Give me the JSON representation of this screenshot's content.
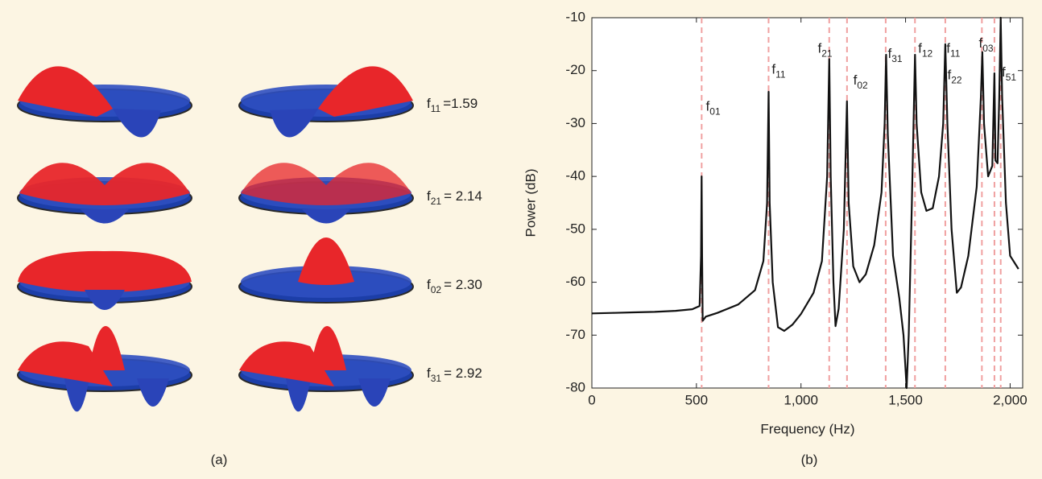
{
  "panel_a": {
    "caption": "(a)",
    "modes": [
      {
        "letter": "f",
        "sub": "11",
        "value": "=1.59"
      },
      {
        "letter": "f",
        "sub": "21",
        "value": "= 2.14"
      },
      {
        "letter": "f",
        "sub": "02",
        "value": "= 2.30"
      },
      {
        "letter": "f",
        "sub": "31",
        "value": "= 2.92"
      }
    ]
  },
  "chart_data": {
    "type": "line",
    "caption": "(b)",
    "xlabel": "Frequency (Hz)",
    "ylabel": "Power (dB)",
    "xlim": [
      0,
      2060
    ],
    "ylim": [
      -80,
      -10
    ],
    "xticks": [
      0,
      500,
      {
        "value": 1000,
        "label": "1,000"
      },
      {
        "value": 1500,
        "label": "1,500"
      },
      {
        "value": 2000,
        "label": "2,000"
      }
    ],
    "yticks": [
      -80,
      -70,
      -60,
      -50,
      -40,
      -30,
      -20,
      -10
    ],
    "x": [
      0,
      100,
      200,
      300,
      400,
      480,
      515,
      522,
      525,
      527,
      530,
      545,
      600,
      700,
      780,
      820,
      838,
      845,
      850,
      865,
      890,
      920,
      960,
      1000,
      1060,
      1100,
      1125,
      1135,
      1142,
      1155,
      1165,
      1180,
      1205,
      1220,
      1228,
      1250,
      1280,
      1310,
      1350,
      1385,
      1400,
      1407,
      1415,
      1440,
      1470,
      1490,
      1505,
      1515,
      1530,
      1545,
      1553,
      1575,
      1600,
      1630,
      1660,
      1680,
      1690,
      1700,
      1720,
      1745,
      1765,
      1800,
      1840,
      1860,
      1867,
      1875,
      1895,
      1915,
      1925,
      1930,
      1940,
      1948,
      1955,
      1962,
      1980,
      2000,
      2040
    ],
    "series": [
      {
        "color": "#111111",
        "values": [
          -65.9,
          -65.8,
          -65.7,
          -65.6,
          -65.4,
          -65.1,
          -64.5,
          -55,
          -40,
          -55,
          -67.3,
          -66.5,
          -65.8,
          -64.2,
          -61.5,
          -56,
          -45,
          -24,
          -45,
          -60,
          -68.5,
          -69.2,
          -68,
          -66,
          -62,
          -56,
          -40,
          -17.8,
          -40,
          -60,
          -68.3,
          -65,
          -50,
          -25.8,
          -45,
          -57,
          -60,
          -58.5,
          -53,
          -43,
          -30,
          -17,
          -32,
          -55,
          -63,
          -70,
          -80,
          -70,
          -45,
          -17,
          -30,
          -43,
          -46.5,
          -46,
          -40,
          -30,
          -15,
          -30,
          -50,
          -62,
          -61,
          -55,
          -42,
          -25,
          -16.5,
          -30,
          -40,
          -38,
          -20.5,
          -37,
          -37.5,
          -25,
          -10,
          -25,
          -45,
          -55,
          -57.5
        ]
      }
    ],
    "mode_lines": [
      525,
      845,
      1135,
      1220,
      1405,
      1545,
      1690,
      1865,
      1925,
      1955
    ],
    "mode_line_color": "#f0a0a0",
    "annotations": [
      {
        "letter": "f",
        "sub": "01",
        "x": 545,
        "y": -27
      },
      {
        "letter": "f",
        "sub": "11",
        "x": 860,
        "y": -20
      },
      {
        "letter": "f",
        "sub": "21",
        "x": 1080,
        "y": -16
      },
      {
        "letter": "f",
        "sub": "02",
        "x": 1250,
        "y": -22
      },
      {
        "letter": "f",
        "sub": "31",
        "x": 1415,
        "y": -17
      },
      {
        "letter": "f",
        "sub": "12",
        "x": 1560,
        "y": -16
      },
      {
        "letter": "f",
        "sub": "11",
        "x": 1695,
        "y": -16
      },
      {
        "letter": "f",
        "sub": "22",
        "x": 1700,
        "y": -21
      },
      {
        "letter": "f",
        "sub": "03",
        "x": 1850,
        "y": -15
      },
      {
        "letter": "f",
        "sub": "51",
        "x": 1960,
        "y": -20.5
      }
    ]
  }
}
